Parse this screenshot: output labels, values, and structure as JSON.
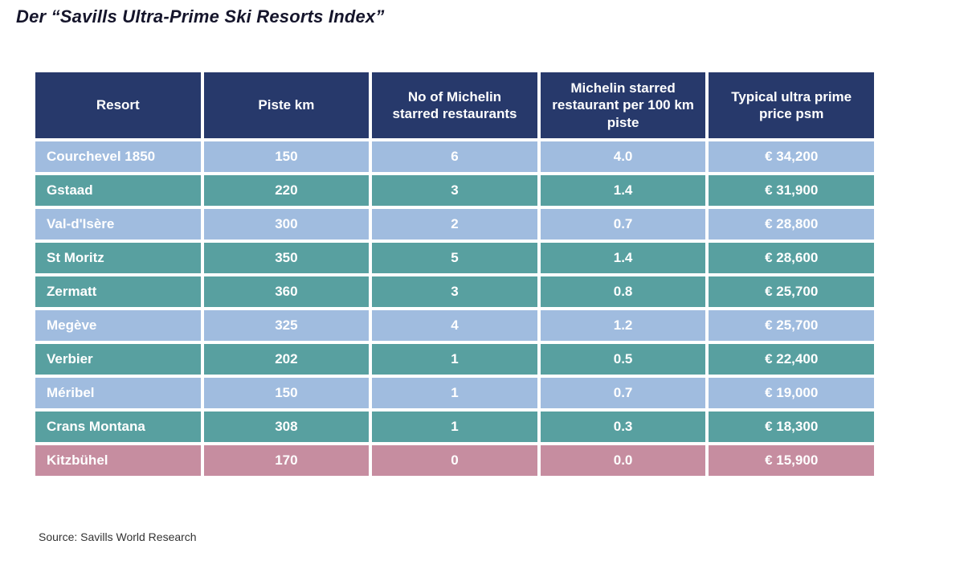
{
  "page": {
    "title": "Der “Savills Ultra-Prime Ski Resorts Index”",
    "source": "Source: Savills World Research"
  },
  "colors": {
    "header_bg": "#27396b",
    "row_blue": "#a0bcdf",
    "row_teal": "#58a0a0",
    "row_pink": "#c68da0",
    "cell_text": "#ffffff"
  },
  "chart_data": {
    "type": "table",
    "title": "Der “Savills Ultra-Prime Ski Resorts Index”",
    "columns": [
      "Resort",
      "Piste km",
      "No of Michelin starred restaurants",
      "Michelin starred restaurant per 100 km piste",
      "Typical ultra prime price psm"
    ],
    "rows": [
      {
        "color": "blue",
        "cells": [
          "Courchevel 1850",
          "150",
          "6",
          "4.0",
          "€ 34,200"
        ]
      },
      {
        "color": "teal",
        "cells": [
          "Gstaad",
          "220",
          "3",
          "1.4",
          "€ 31,900"
        ]
      },
      {
        "color": "blue",
        "cells": [
          "Val-d'Isère",
          "300",
          "2",
          "0.7",
          "€ 28,800"
        ]
      },
      {
        "color": "teal",
        "cells": [
          "St Moritz",
          "350",
          "5",
          "1.4",
          "€ 28,600"
        ]
      },
      {
        "color": "teal",
        "cells": [
          "Zermatt",
          "360",
          "3",
          "0.8",
          "€ 25,700"
        ]
      },
      {
        "color": "blue",
        "cells": [
          "Megève",
          "325",
          "4",
          "1.2",
          "€ 25,700"
        ]
      },
      {
        "color": "teal",
        "cells": [
          "Verbier",
          "202",
          "1",
          "0.5",
          "€ 22,400"
        ]
      },
      {
        "color": "blue",
        "cells": [
          "Méribel",
          "150",
          "1",
          "0.7",
          "€ 19,000"
        ]
      },
      {
        "color": "teal",
        "cells": [
          "Crans Montana",
          "308",
          "1",
          "0.3",
          "€ 18,300"
        ]
      },
      {
        "color": "pink",
        "cells": [
          "Kitzbühel",
          "170",
          "0",
          "0.0",
          "€ 15,900"
        ]
      }
    ]
  }
}
